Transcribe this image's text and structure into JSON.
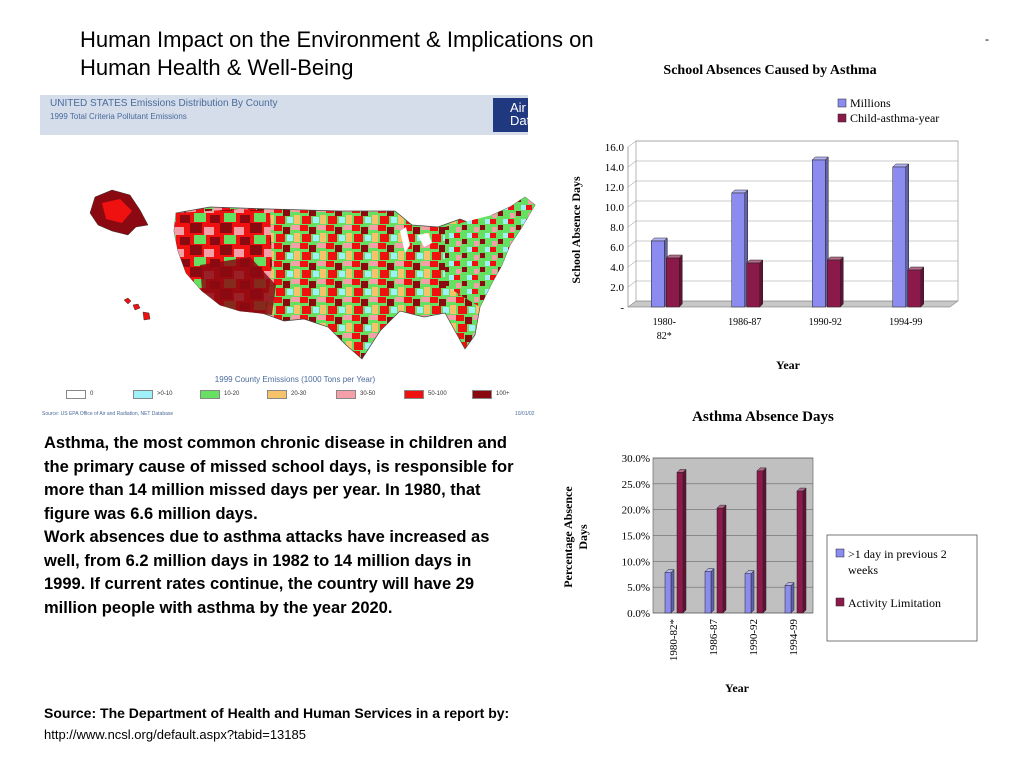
{
  "title": "Human Impact on the Environment & Implications on Human Health & Well-Being",
  "corner_mark": "-",
  "map": {
    "header_title": "UNITED STATES Emissions Distribution By County",
    "header_subtitle": "1999 Total Criteria Pollutant Emissions",
    "badge": "Air Data",
    "legend_title": "1999 County Emissions (1000 Tons per Year)",
    "legend": [
      {
        "label": "0",
        "color": "#ffffff"
      },
      {
        "label": ">0-10",
        "color": "#9ff0f8"
      },
      {
        "label": "10-20",
        "color": "#66e060"
      },
      {
        "label": "20-30",
        "color": "#f6c36a"
      },
      {
        "label": "30-50",
        "color": "#f5a0a8"
      },
      {
        "label": "50-100",
        "color": "#ef1010"
      },
      {
        "label": "100+",
        "color": "#8b0a12"
      }
    ],
    "source": "Source: US EPA Office of Air and Radiation, NET Database",
    "date": "10/01/02"
  },
  "text": {
    "paragraph1": "Asthma, the most common chronic disease in children and the primary cause of missed school days, is responsible for more than 14 million missed days per year. In 1980, that figure was 6.6 million days.",
    "paragraph2": "Work absences due to asthma attacks have increased as well, from 6.2 million days in 1982 to 14 million days in 1999. If current rates continue, the country will have 29 million people with asthma by the year 2020.",
    "source_label": "Source: The Department of Health and Human Services in a report by:",
    "source_url": "http://www.ncsl.org/default.aspx?tabid=13185"
  },
  "chart_data": [
    {
      "type": "bar",
      "title": "School Absences Caused by Asthma",
      "xlabel": "Year",
      "ylabel": "School Absence Days",
      "categories": [
        "1980-82*",
        "1986-87",
        "1990-92",
        "1994-99"
      ],
      "series": [
        {
          "name": "Millions",
          "color": "#8c8cf0",
          "values": [
            6.6,
            11.4,
            14.7,
            14.0
          ]
        },
        {
          "name": "Child-asthma-year",
          "color": "#8b1a4a",
          "values": [
            4.9,
            4.4,
            4.7,
            3.7
          ]
        }
      ],
      "ylim": [
        0,
        16
      ],
      "yticks": [
        "-",
        "2.0",
        "4.0",
        "6.0",
        "8.0",
        "10.0",
        "12.0",
        "14.0",
        "16.0"
      ],
      "legend": "top-right",
      "grid": true
    },
    {
      "type": "bar",
      "title": "Asthma Absence Days",
      "xlabel": "Year",
      "ylabel": "Percentage Absence Days",
      "categories": [
        "1980-82*",
        "1986-87",
        "1990-92",
        "1994-99"
      ],
      "series": [
        {
          "name": ">1 day in previous 2 weeks",
          "color": "#8c8cf0",
          "values": [
            7.8,
            8.0,
            7.6,
            5.3
          ]
        },
        {
          "name": "Activity Limitation",
          "color": "#8b1a4a",
          "values": [
            27.2,
            20.3,
            27.5,
            23.6
          ]
        }
      ],
      "ylim": [
        0,
        30
      ],
      "yticks": [
        "0.0%",
        "5.0%",
        "10.0%",
        "15.0%",
        "20.0%",
        "25.0%",
        "30.0%"
      ],
      "legend": "right",
      "grid": true
    }
  ]
}
